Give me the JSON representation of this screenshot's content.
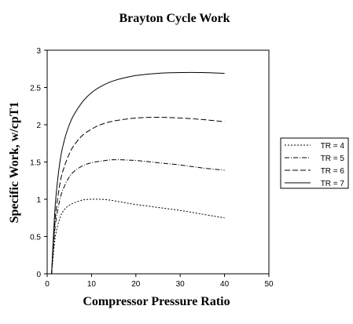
{
  "chart_data": {
    "type": "line",
    "title": "Brayton Cycle Work",
    "xlabel": "Compressor Pressure Ratio",
    "ylabel": "Specific Work, w/cpT1",
    "xlim": [
      0,
      50
    ],
    "ylim": [
      0,
      3
    ],
    "xticks": [
      "0",
      "10",
      "20",
      "30",
      "40",
      "50"
    ],
    "yticks": [
      "0",
      "0.5",
      "1",
      "1.5",
      "2",
      "2.5",
      "3"
    ],
    "grid": false,
    "legend_position": "right",
    "series": [
      {
        "name": "TR = 4",
        "style": "dotted",
        "points": [
          [
            1,
            0
          ],
          [
            1.5,
            0.33
          ],
          [
            2,
            0.55
          ],
          [
            3,
            0.77
          ],
          [
            4,
            0.87
          ],
          [
            5,
            0.92
          ],
          [
            6,
            0.95
          ],
          [
            8,
            0.99
          ],
          [
            10,
            1.0
          ],
          [
            12,
            1.0
          ],
          [
            14,
            0.99
          ],
          [
            16,
            0.97
          ],
          [
            20,
            0.93
          ],
          [
            25,
            0.89
          ],
          [
            30,
            0.85
          ],
          [
            35,
            0.8
          ],
          [
            40,
            0.75
          ]
        ]
      },
      {
        "name": "TR = 5",
        "style": "dash-dot",
        "points": [
          [
            1,
            0
          ],
          [
            1.5,
            0.43
          ],
          [
            2,
            0.72
          ],
          [
            3,
            1.03
          ],
          [
            4,
            1.19
          ],
          [
            5,
            1.3
          ],
          [
            6,
            1.37
          ],
          [
            8,
            1.45
          ],
          [
            10,
            1.49
          ],
          [
            12,
            1.51
          ],
          [
            15,
            1.53
          ],
          [
            20,
            1.52
          ],
          [
            25,
            1.49
          ],
          [
            30,
            1.46
          ],
          [
            35,
            1.42
          ],
          [
            40,
            1.39
          ]
        ]
      },
      {
        "name": "TR = 6",
        "style": "dashed",
        "points": [
          [
            1,
            0
          ],
          [
            1.5,
            0.5
          ],
          [
            2,
            0.85
          ],
          [
            3,
            1.25
          ],
          [
            4,
            1.46
          ],
          [
            5,
            1.61
          ],
          [
            6,
            1.72
          ],
          [
            8,
            1.86
          ],
          [
            10,
            1.94
          ],
          [
            12,
            2.0
          ],
          [
            15,
            2.05
          ],
          [
            20,
            2.09
          ],
          [
            25,
            2.1
          ],
          [
            30,
            2.09
          ],
          [
            35,
            2.07
          ],
          [
            40,
            2.04
          ]
        ]
      },
      {
        "name": "TR = 7",
        "style": "solid",
        "points": [
          [
            1,
            0
          ],
          [
            1.5,
            0.6
          ],
          [
            2,
            1.05
          ],
          [
            3,
            1.55
          ],
          [
            4,
            1.82
          ],
          [
            5,
            2.0
          ],
          [
            6,
            2.13
          ],
          [
            8,
            2.31
          ],
          [
            10,
            2.43
          ],
          [
            12,
            2.51
          ],
          [
            15,
            2.59
          ],
          [
            20,
            2.66
          ],
          [
            25,
            2.69
          ],
          [
            30,
            2.7
          ],
          [
            35,
            2.7
          ],
          [
            40,
            2.69
          ]
        ]
      }
    ]
  }
}
